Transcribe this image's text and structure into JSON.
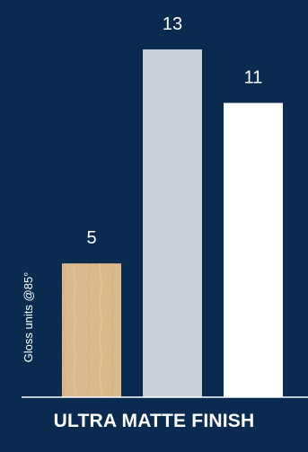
{
  "chart_data": {
    "type": "bar",
    "categories": [
      "",
      "",
      ""
    ],
    "values": [
      5,
      13,
      11
    ],
    "data_labels": [
      "5",
      "13",
      "11"
    ],
    "ylabel": "Gloss units @85°",
    "xlabel": "ULTRA MATTE FINISH",
    "ylim": [
      0,
      13
    ],
    "grid": false,
    "legend": "none",
    "colors": {
      "background": "#0b2a4f",
      "bar_wood": "#dcb98c",
      "bar_grey": "#c8d0d6",
      "bar_white": "#ffffff",
      "axis": "#ffffff",
      "text": "#ffffff"
    }
  }
}
